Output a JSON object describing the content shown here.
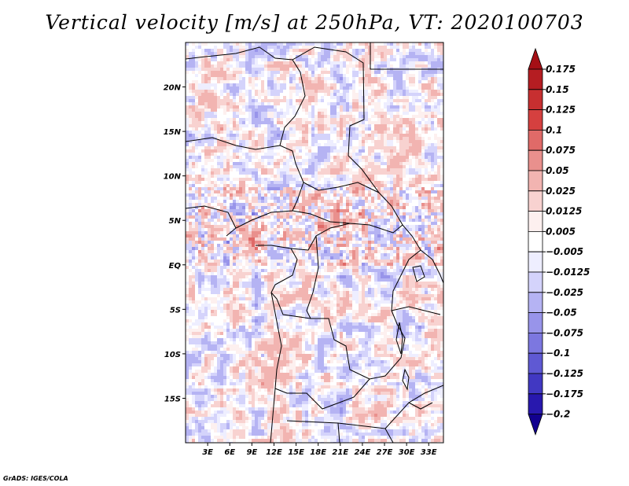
{
  "chart_data": {
    "type": "heatmap",
    "title": "Vertical velocity [m/s] at 250hPa, VT: 2020100703",
    "variable": "Vertical velocity",
    "units": "m/s",
    "level": "250hPa",
    "valid_time": "2020100703",
    "region": "Central Africa",
    "x_range": [
      0,
      35
    ],
    "y_range": [
      -20,
      25
    ],
    "x_ticks": [
      {
        "value": 3,
        "label": "3E"
      },
      {
        "value": 6,
        "label": "6E"
      },
      {
        "value": 9,
        "label": "9E"
      },
      {
        "value": 12,
        "label": "12E"
      },
      {
        "value": 15,
        "label": "15E"
      },
      {
        "value": 18,
        "label": "18E"
      },
      {
        "value": 21,
        "label": "21E"
      },
      {
        "value": 24,
        "label": "24E"
      },
      {
        "value": 27,
        "label": "27E"
      },
      {
        "value": 30,
        "label": "30E"
      },
      {
        "value": 33,
        "label": "33E"
      }
    ],
    "y_ticks": [
      {
        "value": 20,
        "label": "20N"
      },
      {
        "value": 15,
        "label": "15N"
      },
      {
        "value": 10,
        "label": "10N"
      },
      {
        "value": 5,
        "label": "5N"
      },
      {
        "value": 0,
        "label": "EQ"
      },
      {
        "value": -5,
        "label": "5S"
      },
      {
        "value": -10,
        "label": "10S"
      },
      {
        "value": -15,
        "label": "15S"
      }
    ],
    "colorbar": {
      "levels": [
        {
          "label": "0.175",
          "value": 0.175
        },
        {
          "label": "0.15",
          "value": 0.15
        },
        {
          "label": "0.125",
          "value": 0.125
        },
        {
          "label": "0.1",
          "value": 0.1
        },
        {
          "label": "0.075",
          "value": 0.075
        },
        {
          "label": "0.05",
          "value": 0.05
        },
        {
          "label": "0.025",
          "value": 0.025
        },
        {
          "label": "0.0125",
          "value": 0.0125
        },
        {
          "label": "0.005",
          "value": 0.005
        },
        {
          "label": "−0.005",
          "value": -0.005
        },
        {
          "label": "−0.0125",
          "value": -0.0125
        },
        {
          "label": "−0.025",
          "value": -0.025
        },
        {
          "label": "−0.05",
          "value": -0.05
        },
        {
          "label": "−0.075",
          "value": -0.075
        },
        {
          "label": "−0.1",
          "value": -0.1
        },
        {
          "label": "−0.125",
          "value": -0.125
        },
        {
          "label": "−0.175",
          "value": -0.175
        },
        {
          "label": "−0.2",
          "value": -0.2
        }
      ],
      "colors": [
        "#a50f15",
        "#b51d22",
        "#c72f30",
        "#d5403f",
        "#e06a68",
        "#e9908d",
        "#f2b4b1",
        "#f8d2d0",
        "#fdf0ef",
        "#ffffff",
        "#eeeeff",
        "#d4d3fb",
        "#b5b3f3",
        "#9894ea",
        "#7c77e0",
        "#5f59d3",
        "#4138c2",
        "#2818ae",
        "#12008f"
      ]
    }
  },
  "credit": "GrADS: IGES/COLA"
}
